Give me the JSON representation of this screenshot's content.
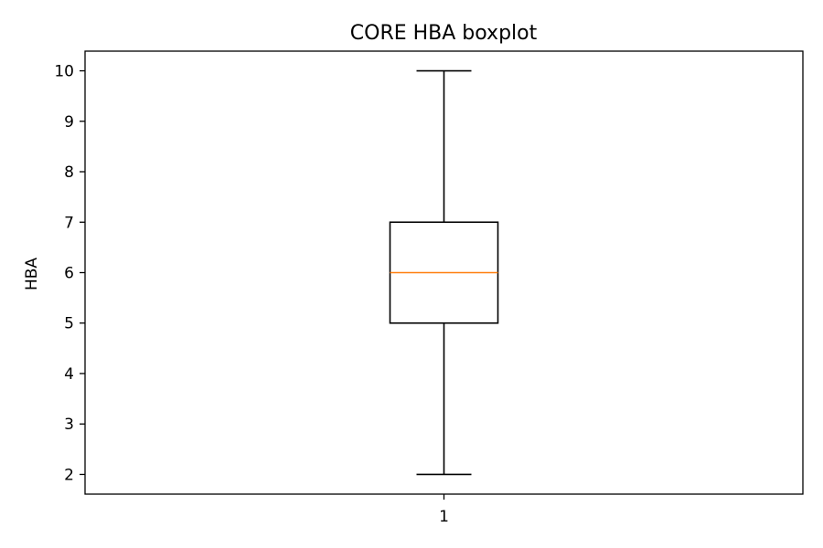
{
  "chart_data": {
    "type": "boxplot",
    "title": "CORE HBA boxplot",
    "xlabel": "",
    "ylabel": "HBA",
    "categories": [
      "1"
    ],
    "boxes": [
      {
        "category": "1",
        "whisker_low": 2,
        "q1": 5,
        "median": 6,
        "q3": 7,
        "whisker_high": 10
      }
    ],
    "yticks": [
      2,
      3,
      4,
      5,
      6,
      7,
      8,
      9,
      10
    ],
    "ylim": [
      1.61,
      10.39
    ],
    "grid": false,
    "colors": {
      "median": "#ff7f0e",
      "box": "#000000",
      "axes": "#000000"
    }
  }
}
